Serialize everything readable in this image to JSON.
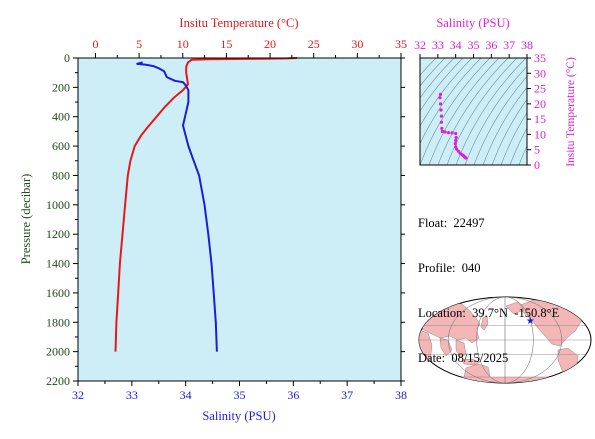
{
  "colors": {
    "background": "#cdeef7",
    "temperature": "#e8171c",
    "salinity": "#1c1ce0",
    "salinity_header": "#dd1fd5",
    "pressure_axis": "#1f4d17",
    "ts_points": "#dd1fd5",
    "land": "#f4b7b8",
    "ocean": "#ffffff"
  },
  "info": {
    "float_label": "Float:",
    "float_value": "22497",
    "profile_label": "Profile:",
    "profile_value": "040",
    "location_label": "Location:",
    "location_value": "39.7°N  -150.8°E",
    "date_label": "Date:",
    "date_value": "08/15/2025"
  },
  "map": {
    "float_marker_icon": "star-icon",
    "float_lat": 39.7,
    "float_lon": -150.8
  },
  "chart_data": [
    {
      "type": "line",
      "title": "",
      "ylabel": "Pressure (decibar)",
      "y_inverted": true,
      "ylim": [
        2200,
        0
      ],
      "yticks": [
        0,
        200,
        400,
        600,
        800,
        1000,
        1200,
        1400,
        1600,
        1800,
        2000,
        2200
      ],
      "grid": false,
      "axes": {
        "top": {
          "label": "Insitu Temperature (°C)",
          "range": [
            -2,
            35
          ],
          "ticks": [
            0,
            5,
            10,
            15,
            20,
            25,
            30,
            35
          ]
        },
        "bottom": {
          "label": "Salinity (PSU)",
          "range": [
            32,
            38
          ],
          "ticks": [
            32,
            33,
            34,
            35,
            36,
            37,
            38
          ]
        }
      },
      "series": [
        {
          "axis": "top",
          "points": [
            [
              23.1,
              0
            ],
            [
              22.0,
              3
            ],
            [
              19.0,
              5
            ],
            [
              16.0,
              7
            ],
            [
              13.0,
              9
            ],
            [
              11.0,
              12
            ],
            [
              10.6,
              30
            ],
            [
              10.4,
              60
            ],
            [
              10.4,
              100
            ],
            [
              10.5,
              140
            ],
            [
              10.6,
              180
            ],
            [
              10.0,
              220
            ],
            [
              9.0,
              270
            ],
            [
              8.0,
              330
            ],
            [
              7.0,
              400
            ],
            [
              6.0,
              470
            ],
            [
              5.2,
              530
            ],
            [
              4.5,
              600
            ],
            [
              4.0,
              700
            ],
            [
              3.7,
              800
            ],
            [
              3.4,
              1000
            ],
            [
              3.1,
              1200
            ],
            [
              2.8,
              1400
            ],
            [
              2.6,
              1600
            ],
            [
              2.4,
              1800
            ],
            [
              2.3,
              2000
            ]
          ]
        },
        {
          "axis": "bottom",
          "points": [
            [
              33.2,
              30
            ],
            [
              33.1,
              40
            ],
            [
              33.25,
              45
            ],
            [
              33.4,
              55
            ],
            [
              33.5,
              70
            ],
            [
              33.6,
              90
            ],
            [
              33.65,
              130
            ],
            [
              33.8,
              155
            ],
            [
              33.95,
              165
            ],
            [
              34.0,
              185
            ],
            [
              34.05,
              220
            ],
            [
              34.05,
              300
            ],
            [
              34.0,
              380
            ],
            [
              33.95,
              460
            ],
            [
              34.0,
              530
            ],
            [
              34.05,
              600
            ],
            [
              34.15,
              700
            ],
            [
              34.25,
              800
            ],
            [
              34.35,
              1000
            ],
            [
              34.42,
              1200
            ],
            [
              34.48,
              1400
            ],
            [
              34.52,
              1600
            ],
            [
              34.56,
              1800
            ],
            [
              34.58,
              2000
            ]
          ]
        }
      ]
    },
    {
      "type": "scatter",
      "title": "Salinity (PSU)",
      "ylabel": "Insitu Temperature (°C)",
      "xlim": [
        32,
        38
      ],
      "ylim": [
        0,
        35
      ],
      "xticks": [
        32,
        33,
        34,
        35,
        36,
        37,
        38
      ],
      "yticks": [
        0,
        5,
        10,
        15,
        20,
        25,
        30,
        35
      ],
      "background_contours": "sigma-t isopycnals",
      "points": [
        [
          33.15,
          23.1
        ],
        [
          33.12,
          22.0
        ],
        [
          33.15,
          20.0
        ],
        [
          33.18,
          18.0
        ],
        [
          33.2,
          16.0
        ],
        [
          33.2,
          14.0
        ],
        [
          33.22,
          12.0
        ],
        [
          33.25,
          11.0
        ],
        [
          33.4,
          10.8
        ],
        [
          33.6,
          10.6
        ],
        [
          33.8,
          10.5
        ],
        [
          34.0,
          10.3
        ],
        [
          34.03,
          9.0
        ],
        [
          34.0,
          8.0
        ],
        [
          33.98,
          7.0
        ],
        [
          34.0,
          6.0
        ],
        [
          34.05,
          5.2
        ],
        [
          34.15,
          4.5
        ],
        [
          34.25,
          3.9
        ],
        [
          34.35,
          3.4
        ],
        [
          34.42,
          3.1
        ],
        [
          34.48,
          2.8
        ],
        [
          34.52,
          2.5
        ],
        [
          34.58,
          2.3
        ]
      ]
    }
  ]
}
